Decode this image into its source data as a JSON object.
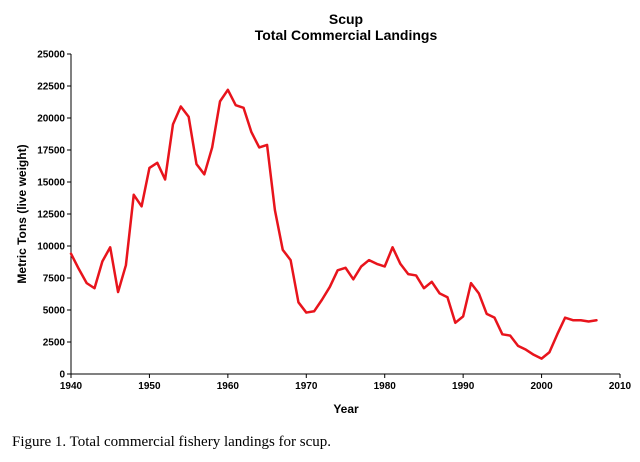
{
  "chart_data": {
    "type": "line",
    "title": "Scup",
    "subtitle": "Total Commercial Landings",
    "xlabel": "Year",
    "ylabel": "Metric Tons (live weight)",
    "xlim": [
      1940,
      2010
    ],
    "ylim": [
      0,
      25000
    ],
    "x_ticks": [
      1940,
      1950,
      1960,
      1970,
      1980,
      1990,
      2000,
      2010
    ],
    "y_ticks": [
      0,
      2500,
      5000,
      7500,
      10000,
      12500,
      15000,
      17500,
      20000,
      22500,
      25000
    ],
    "grid": false,
    "line_color": "#e8141c",
    "series": [
      {
        "x": [
          1940,
          1941,
          1942,
          1943,
          1944,
          1945,
          1946,
          1947,
          1948,
          1949,
          1950,
          1951,
          1952,
          1953,
          1954,
          1955,
          1956,
          1957,
          1958,
          1959,
          1960,
          1961,
          1962,
          1963,
          1964,
          1965,
          1966,
          1967,
          1968,
          1969,
          1970,
          1971,
          1972,
          1973,
          1974,
          1975,
          1976,
          1977,
          1978,
          1979,
          1980,
          1981,
          1982,
          1983,
          1984,
          1985,
          1986,
          1987,
          1988,
          1989,
          1990,
          1991,
          1992,
          1993,
          1994,
          1995,
          1996,
          1997,
          1998,
          1999,
          2000,
          2001,
          2002,
          2003,
          2004,
          2005,
          2006,
          2007
        ],
        "values": [
          9400,
          8200,
          7100,
          6700,
          8800,
          9900,
          6400,
          8500,
          14000,
          13100,
          16100,
          16500,
          15200,
          19500,
          20900,
          20100,
          16400,
          15600,
          17700,
          21300,
          22200,
          21000,
          20800,
          18900,
          17700,
          17900,
          12800,
          9700,
          8900,
          5600,
          4800,
          4900,
          5800,
          6800,
          8100,
          8300,
          7400,
          8400,
          8900,
          8600,
          8400,
          9900,
          8600,
          7800,
          7700,
          6700,
          7200,
          6300,
          6000,
          4000,
          4500,
          7100,
          6300,
          4700,
          4400,
          3100,
          3000,
          2200,
          1900,
          1500,
          1200,
          1700,
          3100,
          4400,
          4200,
          4200,
          4100,
          4200
        ]
      }
    ]
  },
  "caption": "Figure 1.  Total commercial fishery landings for scup."
}
